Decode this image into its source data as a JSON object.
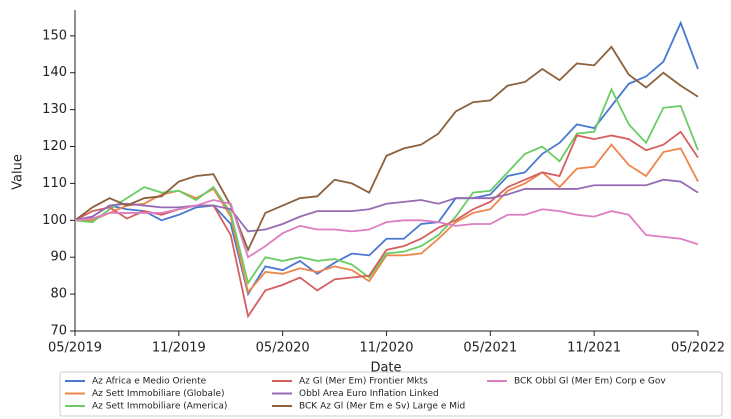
{
  "chart_data": {
    "type": "line",
    "x_label": "Date",
    "y_label": "Value",
    "x": [
      "05/2019",
      "06/2019",
      "07/2019",
      "08/2019",
      "09/2019",
      "10/2019",
      "11/2019",
      "12/2019",
      "01/2020",
      "02/2020",
      "03/2020",
      "04/2020",
      "05/2020",
      "06/2020",
      "07/2020",
      "08/2020",
      "09/2020",
      "10/2020",
      "11/2020",
      "12/2020",
      "01/2021",
      "02/2021",
      "03/2021",
      "04/2021",
      "05/2021",
      "06/2021",
      "07/2021",
      "08/2021",
      "09/2021",
      "10/2021",
      "11/2021",
      "12/2021",
      "01/2022",
      "02/2022",
      "03/2022",
      "04/2022",
      "05/2022"
    ],
    "xticks": [
      "05/2019",
      "11/2019",
      "05/2020",
      "11/2020",
      "05/2021",
      "11/2021",
      "05/2022"
    ],
    "ylim": [
      70,
      157
    ],
    "yticks": [
      70,
      80,
      90,
      100,
      110,
      120,
      130,
      140,
      150
    ],
    "series": [
      {
        "name": "Az Africa e Medio Oriente",
        "color": "#4878d0",
        "values": [
          100,
          101,
          104,
          103,
          102.5,
          100,
          101.5,
          103.5,
          104,
          99,
          80,
          87.5,
          86.5,
          89,
          85.5,
          88.5,
          91,
          90.5,
          95,
          95,
          99,
          99.5,
          106,
          106,
          107,
          112,
          113,
          118,
          121,
          126,
          125,
          131,
          137,
          139,
          143,
          153.5,
          141
        ]
      },
      {
        "name": "Az Sett Immobiliare (Globale)",
        "color": "#ee854a",
        "values": [
          100,
          100,
          102,
          104,
          104.5,
          107,
          108,
          106,
          108.5,
          101,
          80.5,
          86,
          85.5,
          87,
          86,
          87.5,
          86.5,
          83.5,
          90.5,
          90.5,
          91,
          95,
          99.5,
          102,
          103,
          108,
          110,
          113,
          109,
          114,
          114.5,
          120.5,
          115,
          112,
          118.5,
          119.5,
          110.5
        ]
      },
      {
        "name": "Az Sett Immobiliare (America)",
        "color": "#6acc64",
        "values": [
          100,
          99.5,
          103,
          106,
          109,
          107.5,
          108,
          105.5,
          109,
          102,
          83,
          90,
          89,
          90,
          89,
          89.5,
          88,
          84.5,
          91,
          91.5,
          93,
          96,
          101,
          107.5,
          108,
          113,
          118,
          120,
          116,
          123.5,
          124,
          135.5,
          126,
          121,
          130.5,
          131,
          119
        ]
      },
      {
        "name": "Az Gl (Mer Em) Frontier Mkts",
        "color": "#d65f5f",
        "values": [
          100,
          102.5,
          103.5,
          100.5,
          102.5,
          101.5,
          103,
          104,
          104,
          96,
          74,
          81,
          82.5,
          84.5,
          81,
          84,
          84.5,
          85,
          92,
          93,
          95,
          98,
          100,
          103,
          105,
          109,
          111,
          113,
          112,
          123,
          122,
          123,
          122,
          119,
          120.5,
          124,
          117
        ]
      },
      {
        "name": "Obbl Area Euro Inflation Linked",
        "color": "#956cb4",
        "values": [
          100,
          101,
          104,
          104.5,
          104,
          103.5,
          103.5,
          104,
          104,
          103,
          97,
          97.5,
          99,
          101,
          102.5,
          102.5,
          102.5,
          103,
          104.5,
          105,
          105.5,
          104.5,
          106,
          106,
          106,
          107,
          108.5,
          108.5,
          108.5,
          108.5,
          109.5,
          109.5,
          109.5,
          109.5,
          111,
          110.5,
          107.5
        ]
      },
      {
        "name": "BCK Az Gl (Mer Em e Sv) Large e Mid",
        "color": "#8c613c",
        "values": [
          100,
          103.5,
          106,
          104,
          106,
          106.5,
          110.5,
          112,
          112.5,
          104,
          92,
          102,
          104,
          106,
          106.5,
          111,
          110,
          107.5,
          117.5,
          119.5,
          120.5,
          123.5,
          129.5,
          132,
          132.5,
          136.5,
          137.5,
          141,
          138,
          142.5,
          142,
          147,
          139.5,
          136,
          140,
          136.5,
          133.5
        ]
      },
      {
        "name": "BCK Obbl Gl (Mer Em) Corp e Gov",
        "color": "#dc7ec0",
        "values": [
          100,
          100.5,
          102,
          102,
          102,
          102,
          103,
          104,
          105.5,
          104.5,
          90,
          93,
          96.5,
          98.5,
          97.5,
          97.5,
          97,
          97.5,
          99.5,
          100,
          100,
          99.5,
          98.5,
          99,
          99,
          101.5,
          101.5,
          103,
          102.5,
          101.5,
          101,
          102.5,
          101.5,
          96,
          95.5,
          95,
          93.5
        ]
      }
    ]
  }
}
